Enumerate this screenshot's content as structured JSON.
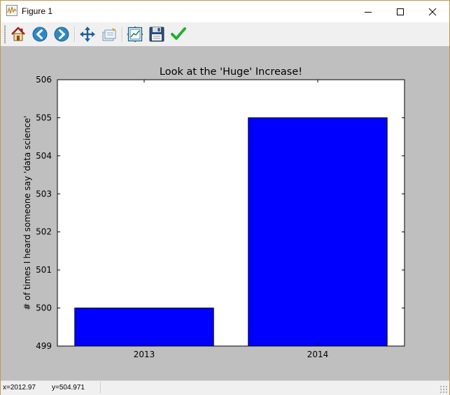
{
  "window": {
    "title": "Figure 1",
    "minimize_icon": "minimize-icon",
    "maximize_icon": "maximize-icon",
    "close_icon": "close-icon"
  },
  "toolbar": {
    "tools": [
      {
        "name": "home",
        "icon": "home-icon"
      },
      {
        "name": "back",
        "icon": "back-arrow-icon"
      },
      {
        "name": "forward",
        "icon": "forward-arrow-icon"
      },
      {
        "name": "pan",
        "icon": "move-icon"
      },
      {
        "name": "zoom",
        "icon": "zoom-rect-icon"
      },
      {
        "name": "subplots",
        "icon": "subplots-icon"
      },
      {
        "name": "save",
        "icon": "floppy-disk-icon"
      },
      {
        "name": "edit",
        "icon": "checkmark-icon"
      }
    ]
  },
  "status": {
    "x": "x=2012.97",
    "y": "y=504.971"
  },
  "colors": {
    "bar": "#0000ff",
    "figure_bg": "#bfbfbf",
    "axes_bg": "#ffffff"
  },
  "chart_data": {
    "type": "bar",
    "title": "Look at the 'Huge' Increase!",
    "xlabel": "",
    "ylabel": "# of times I heard someone say 'data science'",
    "categories": [
      "2013",
      "2014"
    ],
    "values": [
      500,
      505
    ],
    "ylim": [
      499,
      506
    ],
    "yticks": [
      "499",
      "500",
      "501",
      "502",
      "503",
      "504",
      "505",
      "506"
    ],
    "xlim": [
      2012.5,
      2014.5
    ],
    "grid": false,
    "legend": "none"
  }
}
